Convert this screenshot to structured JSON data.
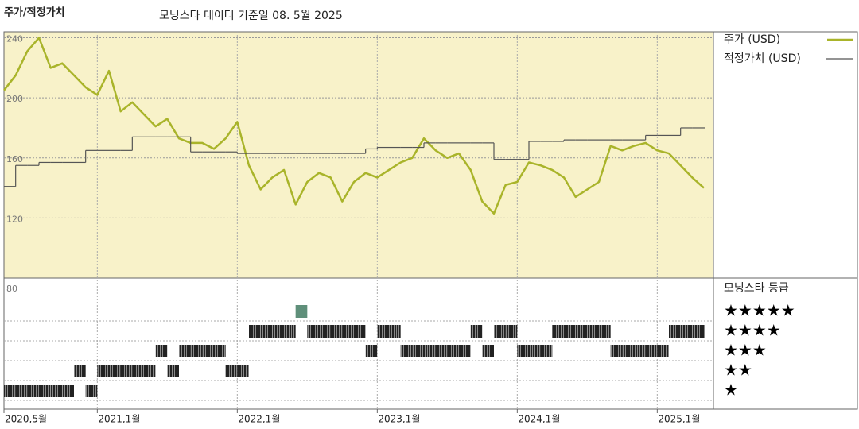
{
  "chart_data": {
    "type": "line",
    "title": "주가/적정가치",
    "subtitle": "모닝스타 데이터 기준일 08. 5월 2025",
    "x": [
      "2020-05",
      "2020-06",
      "2020-07",
      "2020-08",
      "2020-09",
      "2020-10",
      "2020-11",
      "2020-12",
      "2021-01",
      "2021-02",
      "2021-03",
      "2021-04",
      "2021-05",
      "2021-06",
      "2021-07",
      "2021-08",
      "2021-09",
      "2021-10",
      "2021-11",
      "2021-12",
      "2022-01",
      "2022-02",
      "2022-03",
      "2022-04",
      "2022-05",
      "2022-06",
      "2022-07",
      "2022-08",
      "2022-09",
      "2022-10",
      "2022-11",
      "2022-12",
      "2023-01",
      "2023-02",
      "2023-03",
      "2023-04",
      "2023-05",
      "2023-06",
      "2023-07",
      "2023-08",
      "2023-09",
      "2023-10",
      "2023-11",
      "2023-12",
      "2024-01",
      "2024-02",
      "2024-03",
      "2024-04",
      "2024-05",
      "2024-06",
      "2024-07",
      "2024-08",
      "2024-09",
      "2024-10",
      "2024-11",
      "2024-12",
      "2025-01",
      "2025-02",
      "2025-03",
      "2025-04",
      "2025-05"
    ],
    "xticks": [
      {
        "value": "2020-05",
        "label": "2020,5월"
      },
      {
        "value": "2021-01",
        "label": "2021,1월"
      },
      {
        "value": "2022-01",
        "label": "2022,1월"
      },
      {
        "value": "2023-01",
        "label": "2023,1월"
      },
      {
        "value": "2024-01",
        "label": "2024,1월"
      },
      {
        "value": "2025-01",
        "label": "2025,1월"
      }
    ],
    "ylim": [
      80,
      244
    ],
    "yticks": [
      80,
      120,
      160,
      200,
      240
    ],
    "grid": true,
    "series": [
      {
        "name": "주가 (USD)",
        "color": "#a9b42a",
        "values": [
          205,
          215,
          231,
          240,
          220,
          223,
          215,
          207,
          202,
          218,
          191,
          197,
          189,
          181,
          186,
          173,
          170,
          170,
          166,
          173,
          184,
          155,
          139,
          147,
          152,
          129,
          144,
          150,
          147,
          131,
          144,
          150,
          147,
          152,
          157,
          160,
          173,
          165,
          160,
          163,
          152,
          131,
          123,
          142,
          144,
          157,
          155,
          152,
          147,
          134,
          139,
          144,
          168,
          165,
          168,
          170,
          165,
          163,
          155,
          147,
          140
        ]
      },
      {
        "name": "적정가치 (USD)",
        "color": "#555555",
        "step": true,
        "values": [
          141,
          155,
          155,
          157,
          157,
          157,
          157,
          165,
          165,
          165,
          165,
          174,
          174,
          174,
          174,
          174,
          164,
          164,
          164,
          164,
          163,
          163,
          163,
          163,
          163,
          163,
          163,
          163,
          163,
          163,
          163,
          166,
          167,
          167,
          167,
          167,
          170,
          170,
          170,
          170,
          170,
          170,
          159,
          159,
          159,
          171,
          171,
          171,
          172,
          172,
          172,
          172,
          172,
          172,
          172,
          175,
          175,
          175,
          180,
          180,
          180
        ]
      }
    ],
    "ratings": {
      "name": "모닝스타 등급",
      "levels": [
        {
          "value": 5,
          "label": "★★★★★"
        },
        {
          "value": 4,
          "label": "★★★★"
        },
        {
          "value": 3,
          "label": "★★★"
        },
        {
          "value": 2,
          "label": "★★"
        },
        {
          "value": 1,
          "label": "★"
        }
      ],
      "values": [
        1,
        1,
        1,
        1,
        1,
        1,
        2,
        1,
        2,
        2,
        2,
        2,
        2,
        3,
        2,
        3,
        3,
        3,
        3,
        2,
        2,
        4,
        4,
        4,
        4,
        5,
        4,
        4,
        4,
        4,
        4,
        3,
        4,
        4,
        3,
        3,
        3,
        3,
        3,
        3,
        4,
        3,
        4,
        4,
        3,
        3,
        3,
        4,
        4,
        4,
        4,
        4,
        3,
        3,
        3,
        3,
        3,
        4,
        4,
        4,
        4
      ]
    }
  }
}
